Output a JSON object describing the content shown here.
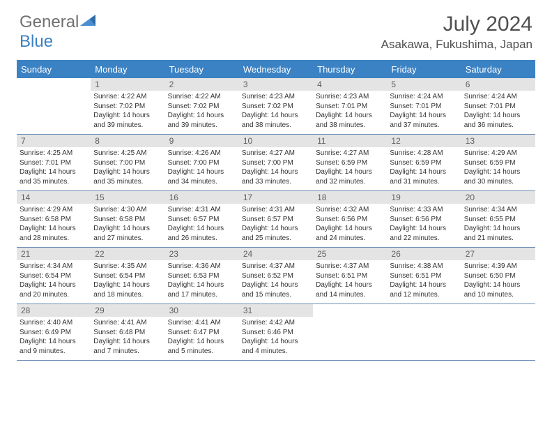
{
  "brand": {
    "part1": "General",
    "part2": "Blue"
  },
  "title": "July 2024",
  "location": "Asakawa, Fukushima, Japan",
  "colors": {
    "header_bar": "#3b82c4",
    "daynum_bg": "#e4e4e4",
    "text": "#333333",
    "title_text": "#505050",
    "row_border": "#6a8db8"
  },
  "days_of_week": [
    "Sunday",
    "Monday",
    "Tuesday",
    "Wednesday",
    "Thursday",
    "Friday",
    "Saturday"
  ],
  "weeks": [
    [
      {
        "n": "",
        "sunrise": "",
        "sunset": "",
        "daylight": ""
      },
      {
        "n": "1",
        "sunrise": "Sunrise: 4:22 AM",
        "sunset": "Sunset: 7:02 PM",
        "daylight": "Daylight: 14 hours and 39 minutes."
      },
      {
        "n": "2",
        "sunrise": "Sunrise: 4:22 AM",
        "sunset": "Sunset: 7:02 PM",
        "daylight": "Daylight: 14 hours and 39 minutes."
      },
      {
        "n": "3",
        "sunrise": "Sunrise: 4:23 AM",
        "sunset": "Sunset: 7:02 PM",
        "daylight": "Daylight: 14 hours and 38 minutes."
      },
      {
        "n": "4",
        "sunrise": "Sunrise: 4:23 AM",
        "sunset": "Sunset: 7:01 PM",
        "daylight": "Daylight: 14 hours and 38 minutes."
      },
      {
        "n": "5",
        "sunrise": "Sunrise: 4:24 AM",
        "sunset": "Sunset: 7:01 PM",
        "daylight": "Daylight: 14 hours and 37 minutes."
      },
      {
        "n": "6",
        "sunrise": "Sunrise: 4:24 AM",
        "sunset": "Sunset: 7:01 PM",
        "daylight": "Daylight: 14 hours and 36 minutes."
      }
    ],
    [
      {
        "n": "7",
        "sunrise": "Sunrise: 4:25 AM",
        "sunset": "Sunset: 7:01 PM",
        "daylight": "Daylight: 14 hours and 35 minutes."
      },
      {
        "n": "8",
        "sunrise": "Sunrise: 4:25 AM",
        "sunset": "Sunset: 7:00 PM",
        "daylight": "Daylight: 14 hours and 35 minutes."
      },
      {
        "n": "9",
        "sunrise": "Sunrise: 4:26 AM",
        "sunset": "Sunset: 7:00 PM",
        "daylight": "Daylight: 14 hours and 34 minutes."
      },
      {
        "n": "10",
        "sunrise": "Sunrise: 4:27 AM",
        "sunset": "Sunset: 7:00 PM",
        "daylight": "Daylight: 14 hours and 33 minutes."
      },
      {
        "n": "11",
        "sunrise": "Sunrise: 4:27 AM",
        "sunset": "Sunset: 6:59 PM",
        "daylight": "Daylight: 14 hours and 32 minutes."
      },
      {
        "n": "12",
        "sunrise": "Sunrise: 4:28 AM",
        "sunset": "Sunset: 6:59 PM",
        "daylight": "Daylight: 14 hours and 31 minutes."
      },
      {
        "n": "13",
        "sunrise": "Sunrise: 4:29 AM",
        "sunset": "Sunset: 6:59 PM",
        "daylight": "Daylight: 14 hours and 30 minutes."
      }
    ],
    [
      {
        "n": "14",
        "sunrise": "Sunrise: 4:29 AM",
        "sunset": "Sunset: 6:58 PM",
        "daylight": "Daylight: 14 hours and 28 minutes."
      },
      {
        "n": "15",
        "sunrise": "Sunrise: 4:30 AM",
        "sunset": "Sunset: 6:58 PM",
        "daylight": "Daylight: 14 hours and 27 minutes."
      },
      {
        "n": "16",
        "sunrise": "Sunrise: 4:31 AM",
        "sunset": "Sunset: 6:57 PM",
        "daylight": "Daylight: 14 hours and 26 minutes."
      },
      {
        "n": "17",
        "sunrise": "Sunrise: 4:31 AM",
        "sunset": "Sunset: 6:57 PM",
        "daylight": "Daylight: 14 hours and 25 minutes."
      },
      {
        "n": "18",
        "sunrise": "Sunrise: 4:32 AM",
        "sunset": "Sunset: 6:56 PM",
        "daylight": "Daylight: 14 hours and 24 minutes."
      },
      {
        "n": "19",
        "sunrise": "Sunrise: 4:33 AM",
        "sunset": "Sunset: 6:56 PM",
        "daylight": "Daylight: 14 hours and 22 minutes."
      },
      {
        "n": "20",
        "sunrise": "Sunrise: 4:34 AM",
        "sunset": "Sunset: 6:55 PM",
        "daylight": "Daylight: 14 hours and 21 minutes."
      }
    ],
    [
      {
        "n": "21",
        "sunrise": "Sunrise: 4:34 AM",
        "sunset": "Sunset: 6:54 PM",
        "daylight": "Daylight: 14 hours and 20 minutes."
      },
      {
        "n": "22",
        "sunrise": "Sunrise: 4:35 AM",
        "sunset": "Sunset: 6:54 PM",
        "daylight": "Daylight: 14 hours and 18 minutes."
      },
      {
        "n": "23",
        "sunrise": "Sunrise: 4:36 AM",
        "sunset": "Sunset: 6:53 PM",
        "daylight": "Daylight: 14 hours and 17 minutes."
      },
      {
        "n": "24",
        "sunrise": "Sunrise: 4:37 AM",
        "sunset": "Sunset: 6:52 PM",
        "daylight": "Daylight: 14 hours and 15 minutes."
      },
      {
        "n": "25",
        "sunrise": "Sunrise: 4:37 AM",
        "sunset": "Sunset: 6:51 PM",
        "daylight": "Daylight: 14 hours and 14 minutes."
      },
      {
        "n": "26",
        "sunrise": "Sunrise: 4:38 AM",
        "sunset": "Sunset: 6:51 PM",
        "daylight": "Daylight: 14 hours and 12 minutes."
      },
      {
        "n": "27",
        "sunrise": "Sunrise: 4:39 AM",
        "sunset": "Sunset: 6:50 PM",
        "daylight": "Daylight: 14 hours and 10 minutes."
      }
    ],
    [
      {
        "n": "28",
        "sunrise": "Sunrise: 4:40 AM",
        "sunset": "Sunset: 6:49 PM",
        "daylight": "Daylight: 14 hours and 9 minutes."
      },
      {
        "n": "29",
        "sunrise": "Sunrise: 4:41 AM",
        "sunset": "Sunset: 6:48 PM",
        "daylight": "Daylight: 14 hours and 7 minutes."
      },
      {
        "n": "30",
        "sunrise": "Sunrise: 4:41 AM",
        "sunset": "Sunset: 6:47 PM",
        "daylight": "Daylight: 14 hours and 5 minutes."
      },
      {
        "n": "31",
        "sunrise": "Sunrise: 4:42 AM",
        "sunset": "Sunset: 6:46 PM",
        "daylight": "Daylight: 14 hours and 4 minutes."
      },
      {
        "n": "",
        "sunrise": "",
        "sunset": "",
        "daylight": ""
      },
      {
        "n": "",
        "sunrise": "",
        "sunset": "",
        "daylight": ""
      },
      {
        "n": "",
        "sunrise": "",
        "sunset": "",
        "daylight": ""
      }
    ]
  ]
}
